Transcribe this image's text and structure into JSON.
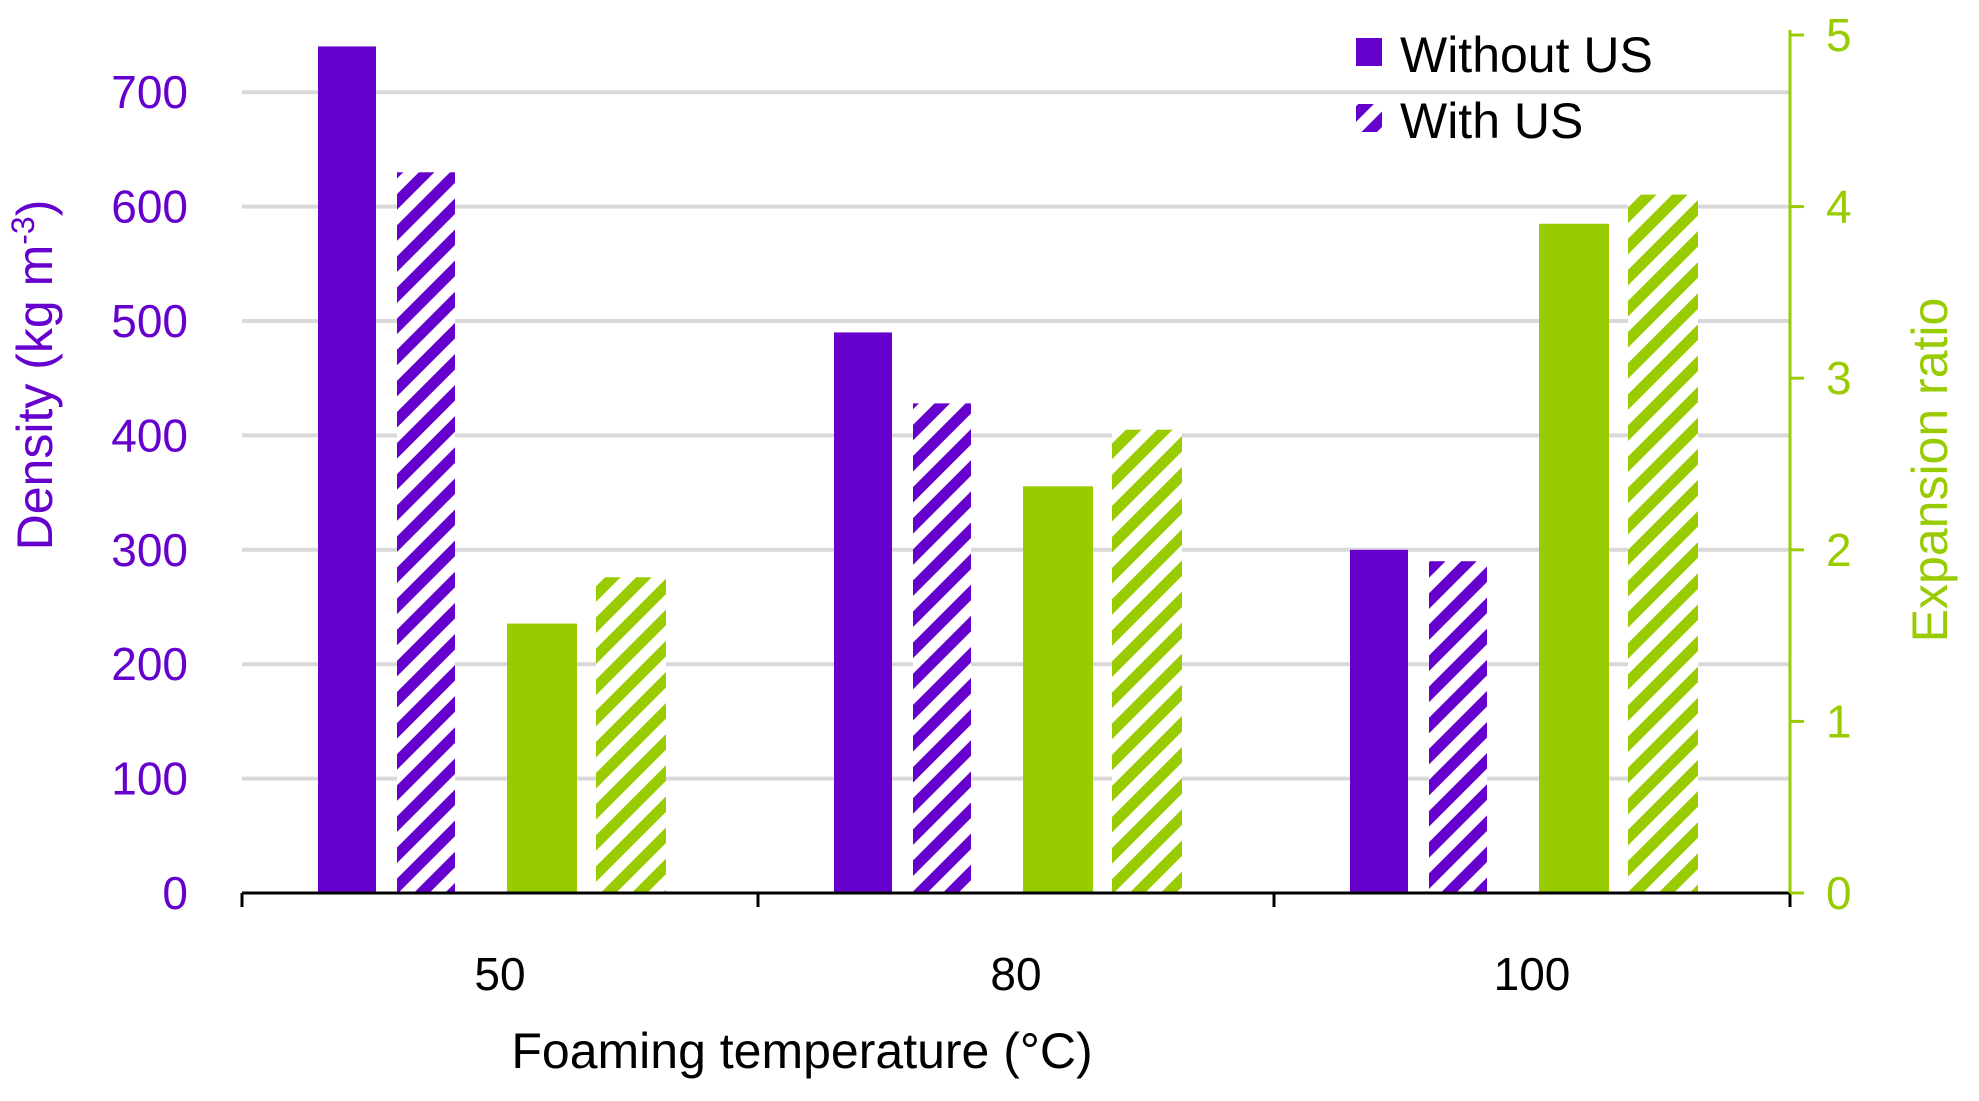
{
  "chart_data": {
    "type": "bar",
    "title": "",
    "xlabel": "Foaming temperature (°C)",
    "ylabel_left": "Density (kg m",
    "ylabel_left_sup": "-3",
    "ylabel_left_close": ")",
    "ylabel_right": "Expansion ratio",
    "categories": [
      "50",
      "80",
      "100"
    ],
    "y_left": {
      "min": 0,
      "max": 750,
      "ticks": [
        0,
        100,
        200,
        300,
        400,
        500,
        600,
        700
      ]
    },
    "y_right": {
      "min": 0,
      "max": 5,
      "ticks": [
        0,
        1,
        2,
        3,
        4,
        5
      ]
    },
    "grid": true,
    "legend_position": "top-right",
    "legend": [
      "Without US",
      "With US"
    ],
    "series": [
      {
        "name": "Density without US",
        "axis": "left",
        "color": "#6600CC",
        "pattern": "solid",
        "values": [
          740,
          490,
          300
        ]
      },
      {
        "name": "Density with US",
        "axis": "left",
        "color": "#6600CC",
        "pattern": "hatched",
        "values": [
          630,
          428,
          290
        ]
      },
      {
        "name": "Expansion ratio without US",
        "axis": "right",
        "color": "#99CC00",
        "pattern": "solid",
        "values": [
          1.57,
          2.37,
          3.9
        ]
      },
      {
        "name": "Expansion ratio with US",
        "axis": "right",
        "color": "#99CC00",
        "pattern": "hatched",
        "values": [
          1.84,
          2.7,
          4.07
        ]
      }
    ]
  }
}
